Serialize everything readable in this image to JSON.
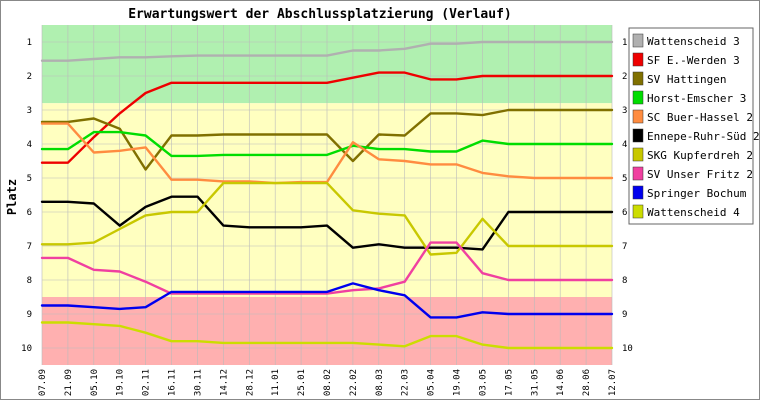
{
  "chart_data": {
    "type": "line",
    "title": "Erwartungswert der Abschlussplatzierung (Verlauf)",
    "ylabel": "Platz",
    "xlabel": "",
    "ylim": [
      0.5,
      10.5
    ],
    "y_inverted": true,
    "y_ticks": [
      1,
      2,
      3,
      4,
      5,
      6,
      7,
      8,
      9,
      10
    ],
    "x_tick_labels": [
      "07.09",
      "21.09",
      "05.10",
      "19.10",
      "02.11",
      "16.11",
      "30.11",
      "14.12",
      "28.12",
      "11.01",
      "25.01",
      "08.02",
      "22.02",
      "08.03",
      "22.03",
      "05.04",
      "19.04",
      "03.05",
      "17.05",
      "31.05",
      "14.06",
      "28.06",
      "12.07"
    ],
    "bands": [
      {
        "from": 0.5,
        "to": 2.8,
        "color": "#b0f0b0"
      },
      {
        "from": 2.8,
        "to": 8.5,
        "color": "#ffffc0"
      },
      {
        "from": 8.5,
        "to": 10.5,
        "color": "#ffb0b0"
      }
    ],
    "legend_position": "right",
    "grid": true,
    "series": [
      {
        "name": "Wattenscheid 3",
        "color": "#b0b0b0",
        "values": [
          1.55,
          1.55,
          1.5,
          1.45,
          1.45,
          1.42,
          1.4,
          1.4,
          1.4,
          1.4,
          1.4,
          1.4,
          1.25,
          1.25,
          1.2,
          1.05,
          1.05,
          1.0,
          1.0,
          1.0,
          1.0,
          1.0,
          1.0
        ]
      },
      {
        "name": "SF E.-Werden 3",
        "color": "#ee0000",
        "values": [
          4.55,
          4.55,
          3.8,
          3.1,
          2.5,
          2.2,
          2.2,
          2.2,
          2.2,
          2.2,
          2.2,
          2.2,
          2.05,
          1.9,
          1.9,
          2.1,
          2.1,
          2.0,
          2.0,
          2.0,
          2.0,
          2.0,
          2.0
        ]
      },
      {
        "name": "SV Hattingen",
        "color": "#807000",
        "values": [
          3.35,
          3.35,
          3.25,
          3.55,
          4.75,
          3.75,
          3.75,
          3.72,
          3.72,
          3.72,
          3.72,
          3.72,
          4.5,
          3.72,
          3.75,
          3.1,
          3.1,
          3.15,
          3.0,
          3.0,
          3.0,
          3.0,
          3.0
        ]
      },
      {
        "name": "Horst-Emscher 3",
        "color": "#00dd00",
        "values": [
          4.15,
          4.15,
          3.65,
          3.65,
          3.75,
          4.35,
          4.35,
          4.32,
          4.32,
          4.32,
          4.32,
          4.32,
          4.05,
          4.15,
          4.15,
          4.22,
          4.22,
          3.9,
          4.0,
          4.0,
          4.0,
          4.0,
          4.0
        ]
      },
      {
        "name": "SC Buer-Hassel 2",
        "color": "#ff8c40",
        "values": [
          3.4,
          3.4,
          4.25,
          4.2,
          4.1,
          5.05,
          5.05,
          5.1,
          5.1,
          5.15,
          5.12,
          5.12,
          3.95,
          4.45,
          4.5,
          4.6,
          4.6,
          4.85,
          4.95,
          5.0,
          5.0,
          5.0,
          5.0
        ]
      },
      {
        "name": "Ennepe-Ruhr-Süd 2",
        "color": "#000000",
        "values": [
          5.7,
          5.7,
          5.75,
          6.4,
          5.85,
          5.55,
          5.55,
          6.4,
          6.45,
          6.45,
          6.45,
          6.4,
          7.05,
          6.95,
          7.05,
          7.05,
          7.05,
          7.1,
          6.0,
          6.0,
          6.0,
          6.0,
          6.0
        ]
      },
      {
        "name": "SKG Kupferdreh 2",
        "color": "#c8c800",
        "values": [
          6.95,
          6.95,
          6.9,
          6.5,
          6.1,
          6.0,
          6.0,
          5.15,
          5.15,
          5.15,
          5.15,
          5.15,
          5.95,
          6.05,
          6.1,
          7.25,
          7.2,
          6.2,
          7.0,
          7.0,
          7.0,
          7.0,
          7.0
        ]
      },
      {
        "name": "SV Unser Fritz 2",
        "color": "#f040a0",
        "values": [
          7.35,
          7.35,
          7.7,
          7.75,
          8.05,
          8.4,
          8.4,
          8.4,
          8.4,
          8.4,
          8.4,
          8.4,
          8.3,
          8.25,
          8.05,
          6.9,
          6.9,
          7.8,
          8.0,
          8.0,
          8.0,
          8.0,
          8.0
        ]
      },
      {
        "name": "Springer Bochum",
        "color": "#0000ee",
        "values": [
          8.75,
          8.75,
          8.8,
          8.85,
          8.8,
          8.35,
          8.35,
          8.35,
          8.35,
          8.35,
          8.35,
          8.35,
          8.1,
          8.3,
          8.45,
          9.1,
          9.1,
          8.95,
          9.0,
          9.0,
          9.0,
          9.0,
          9.0
        ]
      },
      {
        "name": "Wattenscheid 4",
        "color": "#ccdd00",
        "values": [
          9.25,
          9.25,
          9.3,
          9.35,
          9.55,
          9.8,
          9.8,
          9.85,
          9.85,
          9.85,
          9.85,
          9.85,
          9.85,
          9.9,
          9.95,
          9.65,
          9.65,
          9.9,
          10.0,
          10.0,
          10.0,
          10.0,
          10.0
        ]
      }
    ]
  }
}
